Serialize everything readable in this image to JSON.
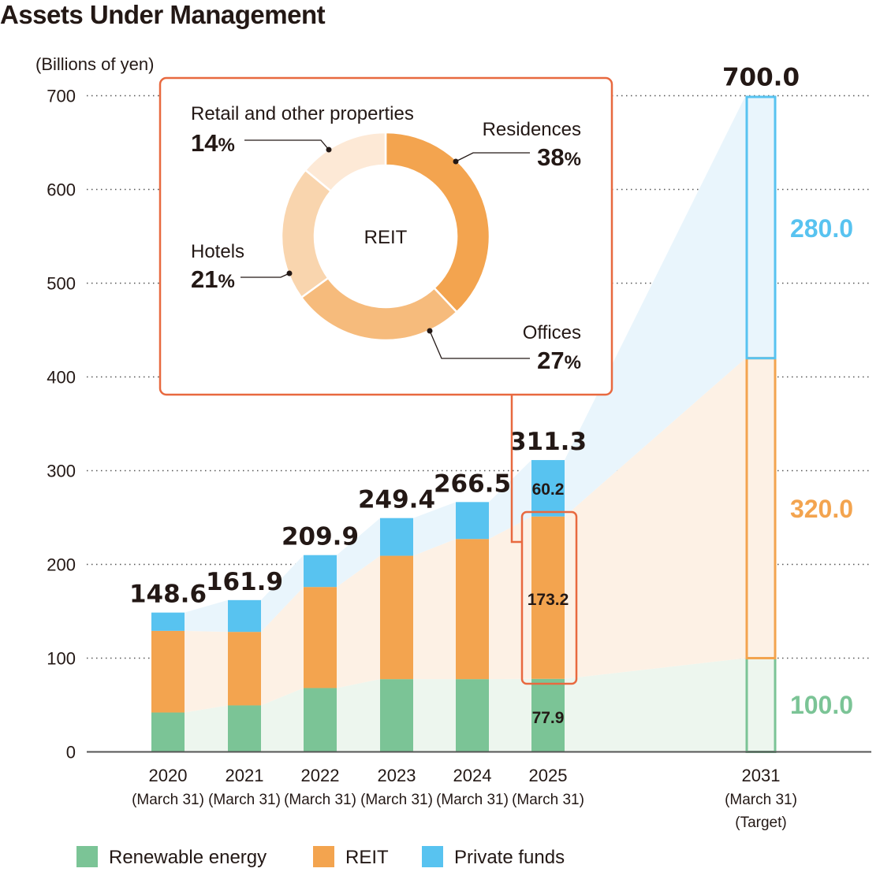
{
  "chart_data": {
    "type": "bar",
    "stacked": true,
    "title": "Assets Under Management",
    "ylabel": "(Billions of yen)",
    "ylim": [
      0,
      700
    ],
    "yticks": [
      0,
      100,
      200,
      300,
      400,
      500,
      600,
      700
    ],
    "grid": true,
    "categories": [
      {
        "year": "2020",
        "sub": [
          "(March 31)"
        ]
      },
      {
        "year": "2021",
        "sub": [
          "(March 31)"
        ]
      },
      {
        "year": "2022",
        "sub": [
          "(March 31)"
        ]
      },
      {
        "year": "2023",
        "sub": [
          "(March 31)"
        ]
      },
      {
        "year": "2024",
        "sub": [
          "(March 31)"
        ]
      },
      {
        "year": "2025",
        "sub": [
          "(March 31)"
        ]
      },
      {
        "year": "2031",
        "sub": [
          "(March 31)",
          "(Target)"
        ]
      }
    ],
    "series": [
      {
        "name": "Renewable energy",
        "color": "#7bc496",
        "values": [
          42.0,
          49.6,
          68.1,
          77.6,
          77.6,
          77.9,
          100.0
        ]
      },
      {
        "name": "REIT",
        "color": "#f3a44f",
        "values": [
          87.1,
          78.4,
          107.8,
          131.6,
          149.5,
          173.2,
          320.0
        ]
      },
      {
        "name": "Private funds",
        "color": "#58c3f0",
        "values": [
          19.5,
          33.9,
          34.0,
          40.2,
          39.4,
          60.2,
          280.0
        ]
      }
    ],
    "totals": [
      "148.6",
      "161.9",
      "209.9",
      "249.4",
      "266.5",
      "311.3",
      "700.0"
    ],
    "segment_labels_2025": [
      "77.9",
      "173.2",
      "60.2"
    ],
    "target_labels_2031": [
      "100.0",
      "320.0",
      "280.0"
    ],
    "legend": {
      "placement": "bottom-left",
      "items": [
        "Renewable energy",
        "REIT",
        "Private funds"
      ]
    },
    "inset": {
      "type": "pie",
      "center_label": "REIT",
      "accent_color": "#e8693f",
      "slices": [
        {
          "label": "Residences",
          "value": 38,
          "color": "#f3a44f"
        },
        {
          "label": "Offices",
          "value": 27,
          "color": "#f6bb7c"
        },
        {
          "label": "Hotels",
          "value": 21,
          "color": "#f9d5ae"
        },
        {
          "label": "Retail and other properties",
          "value": 14,
          "color": "#fde9d6"
        }
      ],
      "percent_sign": "%"
    }
  }
}
